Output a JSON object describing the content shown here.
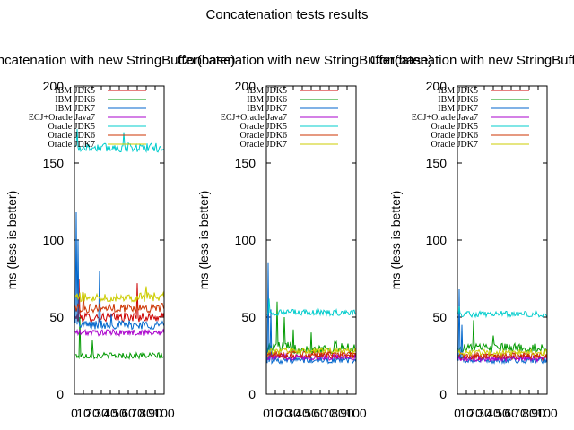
{
  "title": "Concatenation tests results",
  "chart_data": [
    {
      "type": "line",
      "title": "Concatenation with new StringBuffer(base)",
      "ylabel": "ms (less is better)",
      "ylim": [
        0,
        200
      ],
      "xlim": [
        0,
        100
      ],
      "yticks": [
        "0",
        "50",
        "100",
        "150",
        "200"
      ],
      "xtick_labels": [
        "0",
        "10",
        "20",
        "30",
        "40",
        "50",
        "60",
        "70",
        "80",
        "90",
        "100"
      ],
      "legend_position": "top-left",
      "series": [
        {
          "name": "IBM JDK5",
          "color": "#cc0000",
          "baseline": 50,
          "noise": 3,
          "spikes": [
            [
              5,
              75
            ],
            [
              70,
              72
            ]
          ]
        },
        {
          "name": "IBM JDK6",
          "color": "#009900",
          "baseline": 25,
          "noise": 2,
          "spikes": [
            [
              6,
              50
            ],
            [
              20,
              35
            ]
          ]
        },
        {
          "name": "IBM JDK7",
          "color": "#0066cc",
          "baseline": 45,
          "noise": 3,
          "spikes": [
            [
              2,
              118
            ],
            [
              4,
              100
            ],
            [
              28,
              80
            ],
            [
              41,
              52
            ]
          ]
        },
        {
          "name": "ECJ+Oracle Java7",
          "color": "#aa00cc",
          "baseline": 40,
          "noise": 2,
          "spikes": []
        },
        {
          "name": "Oracle JDK5",
          "color": "#00cccc",
          "baseline": 160,
          "noise": 3,
          "spikes": [
            [
              55,
              170
            ],
            [
              3,
              172
            ]
          ]
        },
        {
          "name": "Oracle JDK6",
          "color": "#cc3300",
          "baseline": 56,
          "noise": 3,
          "spikes": [
            [
              10,
              66
            ]
          ]
        },
        {
          "name": "Oracle JDK7",
          "color": "#cccc00",
          "baseline": 63,
          "noise": 3,
          "spikes": [
            [
              80,
              70
            ]
          ]
        }
      ]
    },
    {
      "type": "line",
      "title": "Concatenation with new StringBuffer(base)",
      "ylabel": "ms (less is better)",
      "ylim": [
        0,
        200
      ],
      "xlim": [
        0,
        100
      ],
      "yticks": [
        "0",
        "50",
        "100",
        "150",
        "200"
      ],
      "xtick_labels": [
        "0",
        "10",
        "20",
        "30",
        "40",
        "50",
        "60",
        "70",
        "80",
        "90",
        "100"
      ],
      "legend_position": "top-left",
      "series": [
        {
          "name": "IBM JDK5",
          "color": "#cc0000",
          "baseline": 25,
          "noise": 2,
          "spikes": []
        },
        {
          "name": "IBM JDK6",
          "color": "#009900",
          "baseline": 30,
          "noise": 4,
          "spikes": [
            [
              12,
              60
            ],
            [
              20,
              50
            ],
            [
              30,
              42
            ],
            [
              50,
              40
            ]
          ]
        },
        {
          "name": "IBM JDK7",
          "color": "#0066cc",
          "baseline": 22,
          "noise": 2,
          "spikes": [
            [
              2,
              85
            ],
            [
              5,
              55
            ]
          ]
        },
        {
          "name": "ECJ+Oracle Java7",
          "color": "#aa00cc",
          "baseline": 24,
          "noise": 2,
          "spikes": []
        },
        {
          "name": "Oracle JDK5",
          "color": "#00cccc",
          "baseline": 53,
          "noise": 2,
          "spikes": [
            [
              3,
              62
            ]
          ]
        },
        {
          "name": "Oracle JDK6",
          "color": "#cc3300",
          "baseline": 26,
          "noise": 2,
          "spikes": []
        },
        {
          "name": "Oracle JDK7",
          "color": "#cccc00",
          "baseline": 28,
          "noise": 2,
          "spikes": []
        }
      ]
    },
    {
      "type": "line",
      "title": "Concatenation with new StringBuffer(base)",
      "ylabel": "ms (less is better)",
      "ylim": [
        0,
        200
      ],
      "xlim": [
        0,
        100
      ],
      "yticks": [
        "0",
        "50",
        "100",
        "150",
        "200"
      ],
      "xtick_labels": [
        "0",
        "10",
        "20",
        "30",
        "40",
        "50",
        "60",
        "70",
        "80",
        "90",
        "100"
      ],
      "legend_position": "top-left",
      "series": [
        {
          "name": "IBM JDK5",
          "color": "#cc0000",
          "baseline": 24,
          "noise": 2,
          "spikes": []
        },
        {
          "name": "IBM JDK6",
          "color": "#009900",
          "baseline": 30,
          "noise": 3,
          "spikes": [
            [
              18,
              48
            ],
            [
              40,
              38
            ]
          ]
        },
        {
          "name": "IBM JDK7",
          "color": "#0066cc",
          "baseline": 22,
          "noise": 2,
          "spikes": [
            [
              2,
              68
            ],
            [
              5,
              45
            ]
          ]
        },
        {
          "name": "ECJ+Oracle Java7",
          "color": "#aa00cc",
          "baseline": 23,
          "noise": 2,
          "spikes": []
        },
        {
          "name": "Oracle JDK5",
          "color": "#00cccc",
          "baseline": 52,
          "noise": 2,
          "spikes": [
            [
              2,
              57
            ]
          ]
        },
        {
          "name": "Oracle JDK6",
          "color": "#cc3300",
          "baseline": 25,
          "noise": 2,
          "spikes": []
        },
        {
          "name": "Oracle JDK7",
          "color": "#cccc00",
          "baseline": 27,
          "noise": 2,
          "spikes": []
        }
      ]
    }
  ]
}
